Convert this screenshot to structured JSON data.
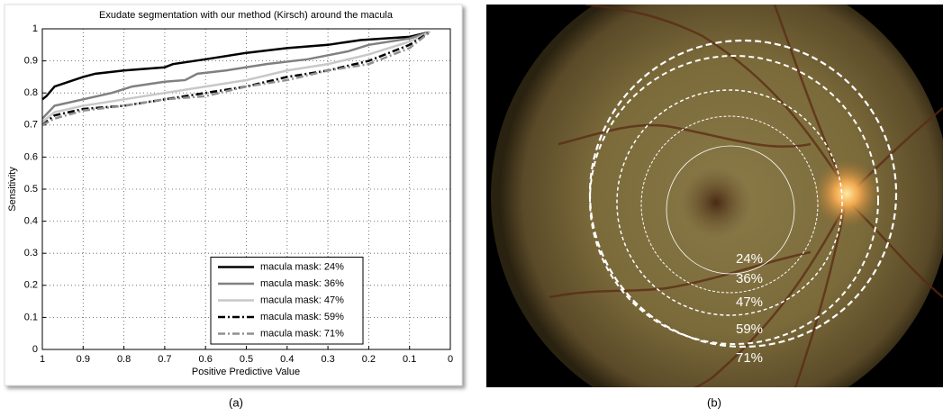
{
  "chart_data": {
    "type": "line",
    "title": "Exudate segmentation with our method (Kirsch) around the macula",
    "x_label": "Positive Predictive Value",
    "y_label": "Sensitivity",
    "xlim": [
      1,
      0
    ],
    "ylim": [
      0,
      1
    ],
    "xticks": [
      1,
      0.9,
      0.8,
      0.7,
      0.6,
      0.5,
      0.4,
      0.3,
      0.2,
      0.1,
      0
    ],
    "yticks": [
      0,
      0.1,
      0.2,
      0.3,
      0.4,
      0.5,
      0.6,
      0.7,
      0.8,
      0.9,
      1
    ],
    "grid": true,
    "legend": "lower center",
    "series": [
      {
        "name": "macula mask: 24%",
        "color": "#000000",
        "linestyle": "solid",
        "x": [
          1,
          0.99,
          0.97,
          0.9,
          0.87,
          0.8,
          0.7,
          0.68,
          0.6,
          0.5,
          0.4,
          0.3,
          0.22,
          0.1,
          0.05
        ],
        "values": [
          0.78,
          0.79,
          0.82,
          0.85,
          0.86,
          0.87,
          0.88,
          0.89,
          0.905,
          0.925,
          0.94,
          0.95,
          0.965,
          0.975,
          0.99
        ]
      },
      {
        "name": "macula mask: 36%",
        "color": "#808080",
        "linestyle": "solid",
        "x": [
          1,
          0.97,
          0.9,
          0.83,
          0.78,
          0.7,
          0.65,
          0.62,
          0.55,
          0.45,
          0.35,
          0.25,
          0.2,
          0.1,
          0.05
        ],
        "values": [
          0.72,
          0.76,
          0.78,
          0.8,
          0.82,
          0.835,
          0.84,
          0.86,
          0.87,
          0.89,
          0.905,
          0.93,
          0.95,
          0.97,
          0.99
        ]
      },
      {
        "name": "macula mask: 47%",
        "color": "#c8c8c8",
        "linestyle": "solid",
        "x": [
          1,
          0.97,
          0.9,
          0.8,
          0.7,
          0.6,
          0.5,
          0.4,
          0.3,
          0.2,
          0.15,
          0.1,
          0.05
        ],
        "values": [
          0.71,
          0.74,
          0.76,
          0.78,
          0.8,
          0.82,
          0.84,
          0.87,
          0.89,
          0.92,
          0.94,
          0.96,
          0.99
        ]
      },
      {
        "name": "macula mask: 59%",
        "color": "#000000",
        "linestyle": "dashdot",
        "x": [
          1,
          0.97,
          0.9,
          0.8,
          0.7,
          0.6,
          0.5,
          0.4,
          0.3,
          0.2,
          0.1,
          0.05
        ],
        "values": [
          0.7,
          0.73,
          0.75,
          0.76,
          0.78,
          0.8,
          0.82,
          0.85,
          0.87,
          0.9,
          0.95,
          0.99
        ]
      },
      {
        "name": "macula mask: 71%",
        "color": "#909090",
        "linestyle": "dashdot",
        "x": [
          1,
          0.97,
          0.9,
          0.8,
          0.7,
          0.6,
          0.5,
          0.4,
          0.3,
          0.2,
          0.1,
          0.05
        ],
        "values": [
          0.7,
          0.72,
          0.745,
          0.76,
          0.78,
          0.79,
          0.82,
          0.84,
          0.87,
          0.89,
          0.94,
          0.99
        ]
      }
    ]
  },
  "fundus": {
    "labels": [
      "24%",
      "36%",
      "47%",
      "59%",
      "71%"
    ]
  },
  "captions": [
    "(a)",
    "(b)"
  ]
}
